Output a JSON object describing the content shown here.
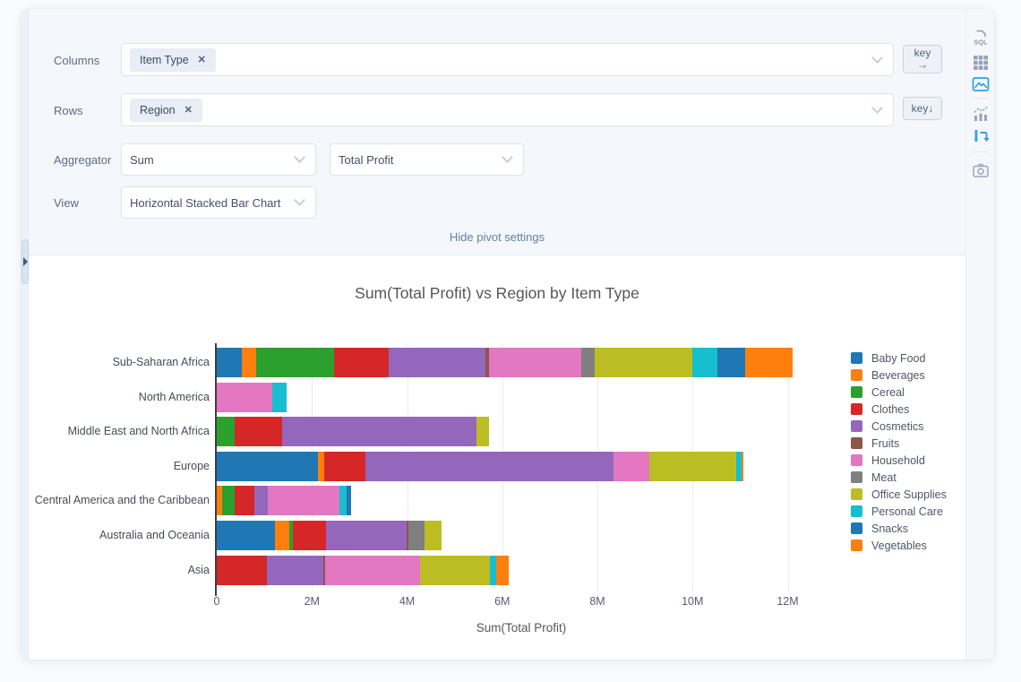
{
  "panel": {
    "columns_label": "Columns",
    "rows_label": "Rows",
    "aggregator_label": "Aggregator",
    "view_label": "View",
    "columns_value": "Item Type",
    "rows_value": "Region",
    "aggregator_value": "Sum",
    "aggregator_field_value": "Total Profit",
    "view_value": "Horizontal Stacked Bar Chart",
    "key_label": "key",
    "columns_key_arrow": "→",
    "rows_key_arrow": "↓",
    "chip_remove_glyph": "✕",
    "hide_pivot_settings_label": "Hide pivot settings"
  },
  "sidebar": {
    "icons": [
      {
        "name": "sql-editor",
        "label": "SQL",
        "active": false
      },
      {
        "name": "table-view",
        "active": false
      },
      {
        "name": "chart-view",
        "active": true
      },
      {
        "name": "chart-type",
        "active": false
      },
      {
        "name": "pivot-toggle",
        "active": true
      },
      {
        "name": "screenshot",
        "active": false
      }
    ]
  },
  "chart_data": {
    "type": "bar",
    "orientation": "horizontal",
    "stacked": true,
    "title": "Sum(Total Profit) vs Region by Item Type",
    "xlabel": "Sum(Total Profit)",
    "value_unit": "millions",
    "xlim": [
      0,
      12.8
    ],
    "grid": true,
    "legend_position": "right",
    "x_ticks": [
      {
        "value": 0,
        "label": "0"
      },
      {
        "value": 2,
        "label": "2M"
      },
      {
        "value": 4,
        "label": "4M"
      },
      {
        "value": 6,
        "label": "6M"
      },
      {
        "value": 8,
        "label": "8M"
      },
      {
        "value": 10,
        "label": "10M"
      },
      {
        "value": 12,
        "label": "12M"
      }
    ],
    "categories": [
      "Sub-Saharan Africa",
      "North America",
      "Middle East and North Africa",
      "Europe",
      "Central America and the Caribbean",
      "Australia and Oceania",
      "Asia"
    ],
    "series": [
      {
        "name": "Baby Food",
        "color": "#1f77b4",
        "values": [
          0.53,
          0,
          0,
          2.12,
          0,
          1.22,
          0
        ]
      },
      {
        "name": "Beverages",
        "color": "#ff7f0e",
        "values": [
          0.3,
          0,
          0,
          0.13,
          0.11,
          0.3,
          0
        ]
      },
      {
        "name": "Cereal",
        "color": "#2ca02c",
        "values": [
          1.63,
          0,
          0.37,
          0,
          0.26,
          0.08,
          0
        ]
      },
      {
        "name": "Clothes",
        "color": "#d62728",
        "values": [
          1.15,
          0,
          1.01,
          0.87,
          0.42,
          0.7,
          1.05
        ]
      },
      {
        "name": "Cosmetics",
        "color": "#9467bd",
        "values": [
          2.03,
          0,
          4.08,
          5.21,
          0.28,
          1.69,
          1.19
        ]
      },
      {
        "name": "Fruits",
        "color": "#8c564b",
        "values": [
          0.08,
          0,
          0,
          0,
          0,
          0.03,
          0.03
        ]
      },
      {
        "name": "Household",
        "color": "#e377c2",
        "values": [
          1.95,
          1.16,
          0,
          0.76,
          1.5,
          0,
          2.01
        ]
      },
      {
        "name": "Meat",
        "color": "#7f7f7f",
        "values": [
          0.28,
          0,
          0,
          0,
          0,
          0.34,
          0
        ]
      },
      {
        "name": "Office Supplies",
        "color": "#bcbd22",
        "values": [
          2.05,
          0,
          0.27,
          1.83,
          0,
          0.37,
          1.47
        ]
      },
      {
        "name": "Personal Care",
        "color": "#17becf",
        "values": [
          0.52,
          0.3,
          0,
          0.11,
          0.16,
          0,
          0.13
        ]
      },
      {
        "name": "Snacks",
        "color": "#1f77b4",
        "values": [
          0.59,
          0,
          0,
          0,
          0.1,
          0,
          0
        ]
      },
      {
        "name": "Vegetables",
        "color": "#ff7f0e",
        "values": [
          0.99,
          0,
          0,
          0.04,
          0,
          0,
          0.26
        ]
      }
    ]
  }
}
